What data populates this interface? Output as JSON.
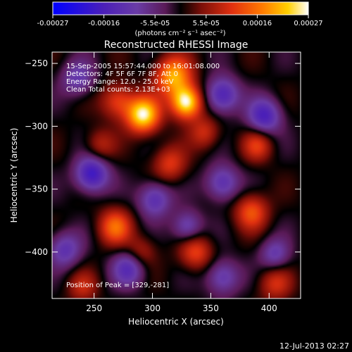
{
  "chart_data": {
    "type": "heatmap",
    "title": "Reconstructed RHESSI Image",
    "xlabel": "Heliocentric X (arcsec)",
    "ylabel": "Heliocentric Y (arcsec)",
    "xlim": [
      214,
      427
    ],
    "ylim": [
      -437,
      -241
    ],
    "x_ticks": [
      250,
      300,
      350,
      400
    ],
    "y_ticks": [
      -250,
      -300,
      -350,
      -400
    ],
    "colorbar": {
      "ticks": [
        "-0.00027",
        "-0.00016",
        "-5.5e-05",
        "5.5e-05",
        "0.00016",
        "0.00027"
      ],
      "unit_label": "(photons cm⁻² s⁻¹ asec⁻²)",
      "range": [
        -0.00027,
        0.00027
      ],
      "colors": [
        "#0000ff",
        "#4b1fb8",
        "#6a3ca6",
        "#5a1a58",
        "#000000",
        "#7a0e08",
        "#e03010",
        "#ff7a00",
        "#ffd000",
        "#ffffff"
      ]
    },
    "annotations": [
      "15-Sep-2005 15:57:44.000 to 16:01:08.000",
      "Detectors: 4F 5F 6F 7F 8F, Att 0",
      "Energy Range: 12.0 - 25.0 keV",
      "Clean     Total counts: 2.13E+03"
    ],
    "peak_label": "Position of Peak = [329,-281]",
    "peak": [
      329,
      -281
    ],
    "sources": [
      {
        "x": 329,
        "y": -281,
        "amp": 1.0,
        "sigma": 9
      },
      {
        "x": 292,
        "y": -291,
        "amp": 0.95,
        "sigma": 10
      },
      {
        "x": 318,
        "y": -260,
        "amp": 0.75,
        "sigma": 11
      },
      {
        "x": 270,
        "y": -280,
        "amp": 0.45,
        "sigma": 10
      },
      {
        "x": 345,
        "y": -305,
        "amp": 0.35,
        "sigma": 9
      },
      {
        "x": 315,
        "y": -330,
        "amp": 0.4,
        "sigma": 10
      },
      {
        "x": 255,
        "y": -315,
        "amp": 0.3,
        "sigma": 9
      },
      {
        "x": 390,
        "y": -315,
        "amp": 0.4,
        "sigma": 9
      },
      {
        "x": 385,
        "y": -368,
        "amp": 0.5,
        "sigma": 10
      },
      {
        "x": 337,
        "y": -400,
        "amp": 0.45,
        "sigma": 10
      },
      {
        "x": 268,
        "y": -380,
        "amp": 0.55,
        "sigma": 10
      },
      {
        "x": 290,
        "y": -400,
        "amp": 0.3,
        "sigma": 9
      },
      {
        "x": 405,
        "y": -425,
        "amp": 0.35,
        "sigma": 10
      },
      {
        "x": 240,
        "y": -428,
        "amp": 0.3,
        "sigma": 9
      },
      {
        "x": 360,
        "y": -275,
        "amp": -0.6,
        "sigma": 10
      },
      {
        "x": 248,
        "y": -338,
        "amp": -0.7,
        "sigma": 10
      },
      {
        "x": 302,
        "y": -358,
        "amp": -0.5,
        "sigma": 10
      },
      {
        "x": 396,
        "y": -292,
        "amp": -0.6,
        "sigma": 10
      },
      {
        "x": 360,
        "y": -345,
        "amp": -0.5,
        "sigma": 10
      },
      {
        "x": 280,
        "y": -413,
        "amp": -0.5,
        "sigma": 10
      },
      {
        "x": 330,
        "y": -380,
        "amp": -0.45,
        "sigma": 9
      },
      {
        "x": 360,
        "y": -420,
        "amp": -0.45,
        "sigma": 10
      },
      {
        "x": 236,
        "y": -262,
        "amp": -0.4,
        "sigma": 10
      },
      {
        "x": 405,
        "y": -402,
        "amp": -0.4,
        "sigma": 9
      },
      {
        "x": 225,
        "y": -398,
        "amp": -0.45,
        "sigma": 10
      }
    ]
  },
  "footer": {
    "timestamp": "12-Jul-2013 02:27"
  }
}
